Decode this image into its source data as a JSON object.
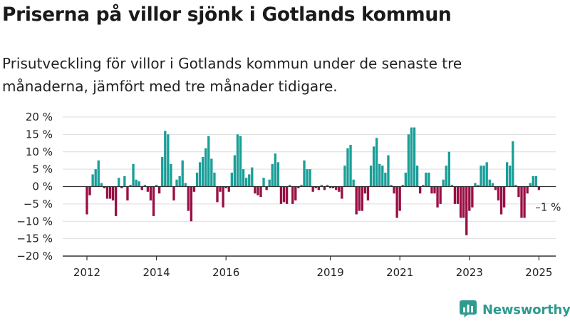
{
  "title": "Priserna på villor sjönk i Gotlands kommun",
  "subtitle": "Prisutveckling för villor i Gotlands kommun under de senaste tre månaderna, jämfört med tre månader tidigare.",
  "logo": {
    "text": "Newsworthy",
    "icon": "newsworthy-logo-icon",
    "color": "#2e9b8e"
  },
  "colors": {
    "positive": "#1a9e98",
    "negative": "#9a0f45",
    "grid": "#dedede",
    "axis": "#333333"
  },
  "chart_data": {
    "type": "bar",
    "ylim": [
      -20,
      20
    ],
    "ytick_values": [
      20,
      15,
      10,
      5,
      0,
      -5,
      -10,
      -15,
      -20
    ],
    "ytick_labels": [
      "20 %",
      "15 %",
      "10 %",
      "5 %",
      "0 %",
      "−5 %",
      "−10 %",
      "−15 %",
      "−20 %"
    ],
    "xtick_labels": [
      {
        "label": "2012",
        "x": 2012.0
      },
      {
        "label": "2014",
        "x": 2014.0
      },
      {
        "label": "2016",
        "x": 2016.0
      },
      {
        "label": "2019",
        "x": 2019.0
      },
      {
        "label": "2021",
        "x": 2021.0
      },
      {
        "label": "2023",
        "x": 2023.0
      },
      {
        "label": "2025",
        "x": 2025.0
      }
    ],
    "annotation": {
      "text": "–1 %",
      "x": 2024.917,
      "y": -1
    },
    "points": [
      {
        "x": 2012.0,
        "y": -8.0
      },
      {
        "x": 2012.083,
        "y": -2.5
      },
      {
        "x": 2012.167,
        "y": 3.5
      },
      {
        "x": 2012.25,
        "y": 5.0
      },
      {
        "x": 2012.333,
        "y": 7.5
      },
      {
        "x": 2012.417,
        "y": 1.0
      },
      {
        "x": 2012.5,
        "y": -0.5
      },
      {
        "x": 2012.583,
        "y": -3.5
      },
      {
        "x": 2012.667,
        "y": -3.5
      },
      {
        "x": 2012.75,
        "y": -4.0
      },
      {
        "x": 2012.833,
        "y": -8.5
      },
      {
        "x": 2012.917,
        "y": 2.5
      },
      {
        "x": 2013.0,
        "y": -0.5
      },
      {
        "x": 2013.083,
        "y": 3.0
      },
      {
        "x": 2013.167,
        "y": -4.0
      },
      {
        "x": 2013.25,
        "y": 0.5
      },
      {
        "x": 2013.333,
        "y": 6.5
      },
      {
        "x": 2013.417,
        "y": 2.0
      },
      {
        "x": 2013.5,
        "y": 1.5
      },
      {
        "x": 2013.583,
        "y": -1.0
      },
      {
        "x": 2013.667,
        "y": 0.5
      },
      {
        "x": 2013.75,
        "y": -1.5
      },
      {
        "x": 2013.833,
        "y": -4.0
      },
      {
        "x": 2013.917,
        "y": -8.5
      },
      {
        "x": 2014.0,
        "y": 0.5
      },
      {
        "x": 2014.083,
        "y": -2.0
      },
      {
        "x": 2014.167,
        "y": 8.5
      },
      {
        "x": 2014.25,
        "y": 16.0
      },
      {
        "x": 2014.333,
        "y": 15.0
      },
      {
        "x": 2014.417,
        "y": 6.5
      },
      {
        "x": 2014.5,
        "y": -4.0
      },
      {
        "x": 2014.583,
        "y": 2.0
      },
      {
        "x": 2014.667,
        "y": 3.0
      },
      {
        "x": 2014.75,
        "y": 7.5
      },
      {
        "x": 2014.833,
        "y": 1.0
      },
      {
        "x": 2014.917,
        "y": -7.0
      },
      {
        "x": 2015.0,
        "y": -10.0
      },
      {
        "x": 2015.083,
        "y": -1.5
      },
      {
        "x": 2015.167,
        "y": 4.0
      },
      {
        "x": 2015.25,
        "y": 7.0
      },
      {
        "x": 2015.333,
        "y": 8.5
      },
      {
        "x": 2015.417,
        "y": 11.0
      },
      {
        "x": 2015.5,
        "y": 14.5
      },
      {
        "x": 2015.583,
        "y": 8.0
      },
      {
        "x": 2015.667,
        "y": 4.0
      },
      {
        "x": 2015.75,
        "y": -4.5
      },
      {
        "x": 2015.833,
        "y": -1.5
      },
      {
        "x": 2015.917,
        "y": -6.0
      },
      {
        "x": 2016.0,
        "y": -0.5
      },
      {
        "x": 2016.083,
        "y": -1.5
      },
      {
        "x": 2016.167,
        "y": 4.0
      },
      {
        "x": 2016.25,
        "y": 9.0
      },
      {
        "x": 2016.333,
        "y": 15.0
      },
      {
        "x": 2016.417,
        "y": 14.5
      },
      {
        "x": 2016.5,
        "y": 5.0
      },
      {
        "x": 2016.583,
        "y": 2.5
      },
      {
        "x": 2016.667,
        "y": 3.5
      },
      {
        "x": 2016.75,
        "y": 5.5
      },
      {
        "x": 2016.833,
        "y": -2.0
      },
      {
        "x": 2016.917,
        "y": -2.5
      },
      {
        "x": 2017.0,
        "y": -3.0
      },
      {
        "x": 2017.083,
        "y": 2.5
      },
      {
        "x": 2017.167,
        "y": -1.0
      },
      {
        "x": 2017.25,
        "y": 2.0
      },
      {
        "x": 2017.333,
        "y": 6.5
      },
      {
        "x": 2017.417,
        "y": 9.5
      },
      {
        "x": 2017.5,
        "y": 7.0
      },
      {
        "x": 2017.583,
        "y": -5.0
      },
      {
        "x": 2017.667,
        "y": -4.5
      },
      {
        "x": 2017.75,
        "y": -5.0
      },
      {
        "x": 2017.833,
        "y": 0.5
      },
      {
        "x": 2017.917,
        "y": -5.0
      },
      {
        "x": 2018.0,
        "y": -4.0
      },
      {
        "x": 2018.083,
        "y": -0.5
      },
      {
        "x": 2018.167,
        "y": 0.5
      },
      {
        "x": 2018.25,
        "y": 7.5
      },
      {
        "x": 2018.333,
        "y": 5.0
      },
      {
        "x": 2018.417,
        "y": 5.0
      },
      {
        "x": 2018.5,
        "y": -1.5
      },
      {
        "x": 2018.583,
        "y": -0.5
      },
      {
        "x": 2018.667,
        "y": -1.0
      },
      {
        "x": 2018.75,
        "y": 0.5
      },
      {
        "x": 2018.833,
        "y": -1.0
      },
      {
        "x": 2018.917,
        "y": 0.5
      },
      {
        "x": 2019.0,
        "y": -0.5
      },
      {
        "x": 2019.083,
        "y": -0.5
      },
      {
        "x": 2019.167,
        "y": -1.0
      },
      {
        "x": 2019.25,
        "y": -1.5
      },
      {
        "x": 2019.333,
        "y": -3.5
      },
      {
        "x": 2019.417,
        "y": 6.0
      },
      {
        "x": 2019.5,
        "y": 11.0
      },
      {
        "x": 2019.583,
        "y": 12.0
      },
      {
        "x": 2019.667,
        "y": 2.0
      },
      {
        "x": 2019.75,
        "y": -8.0
      },
      {
        "x": 2019.833,
        "y": -7.0
      },
      {
        "x": 2019.917,
        "y": -7.0
      },
      {
        "x": 2020.0,
        "y": -2.0
      },
      {
        "x": 2020.083,
        "y": -4.0
      },
      {
        "x": 2020.167,
        "y": 6.0
      },
      {
        "x": 2020.25,
        "y": 11.5
      },
      {
        "x": 2020.333,
        "y": 14.0
      },
      {
        "x": 2020.417,
        "y": 6.5
      },
      {
        "x": 2020.5,
        "y": 6.0
      },
      {
        "x": 2020.583,
        "y": 4.0
      },
      {
        "x": 2020.667,
        "y": 9.0
      },
      {
        "x": 2020.75,
        "y": 0.5
      },
      {
        "x": 2020.833,
        "y": -2.0
      },
      {
        "x": 2020.917,
        "y": -9.0
      },
      {
        "x": 2021.0,
        "y": -7.0
      },
      {
        "x": 2021.083,
        "y": 0.5
      },
      {
        "x": 2021.167,
        "y": 4.0
      },
      {
        "x": 2021.25,
        "y": 15.0
      },
      {
        "x": 2021.333,
        "y": 17.0
      },
      {
        "x": 2021.417,
        "y": 17.0
      },
      {
        "x": 2021.5,
        "y": 6.0
      },
      {
        "x": 2021.583,
        "y": -2.0
      },
      {
        "x": 2021.667,
        "y": 0.5
      },
      {
        "x": 2021.75,
        "y": 4.0
      },
      {
        "x": 2021.833,
        "y": 4.0
      },
      {
        "x": 2021.917,
        "y": -2.0
      },
      {
        "x": 2022.0,
        "y": -2.0
      },
      {
        "x": 2022.083,
        "y": -6.0
      },
      {
        "x": 2022.167,
        "y": -5.0
      },
      {
        "x": 2022.25,
        "y": 2.0
      },
      {
        "x": 2022.333,
        "y": 6.0
      },
      {
        "x": 2022.417,
        "y": 10.0
      },
      {
        "x": 2022.5,
        "y": 0.5
      },
      {
        "x": 2022.583,
        "y": -5.0
      },
      {
        "x": 2022.667,
        "y": -5.0
      },
      {
        "x": 2022.75,
        "y": -9.0
      },
      {
        "x": 2022.833,
        "y": -9.0
      },
      {
        "x": 2022.917,
        "y": -14.0
      },
      {
        "x": 2023.0,
        "y": -7.0
      },
      {
        "x": 2023.083,
        "y": -6.0
      },
      {
        "x": 2023.167,
        "y": 1.0
      },
      {
        "x": 2023.25,
        "y": 0.5
      },
      {
        "x": 2023.333,
        "y": 6.0
      },
      {
        "x": 2023.417,
        "y": 6.0
      },
      {
        "x": 2023.5,
        "y": 7.0
      },
      {
        "x": 2023.583,
        "y": 2.0
      },
      {
        "x": 2023.667,
        "y": 1.0
      },
      {
        "x": 2023.75,
        "y": -1.0
      },
      {
        "x": 2023.833,
        "y": -4.0
      },
      {
        "x": 2023.917,
        "y": -8.0
      },
      {
        "x": 2024.0,
        "y": -6.0
      },
      {
        "x": 2024.083,
        "y": 7.0
      },
      {
        "x": 2024.167,
        "y": 6.0
      },
      {
        "x": 2024.25,
        "y": 13.0
      },
      {
        "x": 2024.333,
        "y": 0.5
      },
      {
        "x": 2024.417,
        "y": -3.0
      },
      {
        "x": 2024.5,
        "y": -9.0
      },
      {
        "x": 2024.583,
        "y": -9.0
      },
      {
        "x": 2024.667,
        "y": -2.0
      },
      {
        "x": 2024.75,
        "y": 1.0
      },
      {
        "x": 2024.833,
        "y": 3.0
      },
      {
        "x": 2024.917,
        "y": 3.0
      },
      {
        "x": 2025.0,
        "y": -1.0
      }
    ]
  }
}
